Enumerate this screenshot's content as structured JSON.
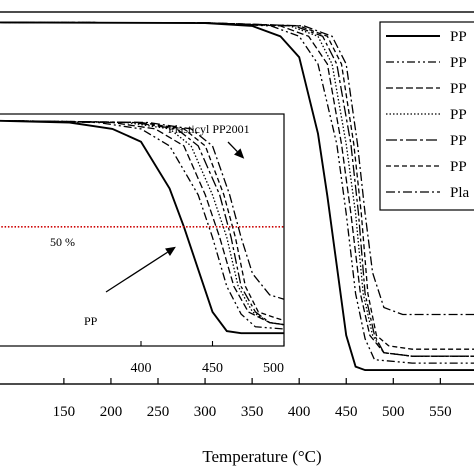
{
  "chart_data": {
    "type": "line",
    "xlabel": "Temperature (°C)",
    "ylabel": "",
    "xlim": [
      80,
      590
    ],
    "ylim": [
      -4,
      103
    ],
    "x_ticks": [
      150,
      200,
      250,
      300,
      350,
      400,
      450,
      500,
      550
    ],
    "x_tick_labels": [
      "150",
      "200",
      "250",
      "300",
      "350",
      "400",
      "450",
      "500",
      "550"
    ],
    "legend_position": "right",
    "legend_entries": [
      "PP",
      "PP",
      "PP",
      "PP",
      "PP",
      "PP",
      "Pla"
    ],
    "series": [
      {
        "name": "PP",
        "dash": "solid",
        "x": [
          80,
          300,
          350,
          380,
          400,
          420,
          430,
          440,
          450,
          460,
          470,
          520,
          590
        ],
        "y": [
          100,
          99.8,
          99,
          96,
          90,
          68,
          50,
          30,
          10,
          1,
          0,
          0,
          0
        ]
      },
      {
        "name": "PP",
        "dash": "dashdotdot",
        "x": [
          80,
          300,
          370,
          400,
          420,
          440,
          450,
          460,
          470,
          480,
          520,
          590
        ],
        "y": [
          100,
          99.9,
          99,
          96,
          88,
          65,
          45,
          22,
          9,
          3,
          2,
          2
        ]
      },
      {
        "name": "PP",
        "dash": "longdash",
        "x": [
          80,
          300,
          380,
          410,
          430,
          445,
          455,
          465,
          475,
          490,
          520,
          590
        ],
        "y": [
          100,
          99.9,
          99,
          96,
          88,
          65,
          45,
          22,
          10,
          5,
          4,
          4
        ]
      },
      {
        "name": "PP",
        "dash": "dotted",
        "x": [
          80,
          300,
          390,
          420,
          435,
          450,
          460,
          468,
          478,
          490,
          520,
          590
        ],
        "y": [
          100,
          99.9,
          99,
          96,
          88,
          65,
          45,
          22,
          10,
          5,
          4,
          4
        ]
      },
      {
        "name": "PP",
        "dash": "longdashdot",
        "x": [
          80,
          300,
          395,
          425,
          440,
          455,
          463,
          470,
          480,
          490,
          520,
          590
        ],
        "y": [
          100,
          99.9,
          99,
          96,
          88,
          65,
          45,
          22,
          10,
          5,
          4,
          4
        ]
      },
      {
        "name": "PP",
        "dash": "dashed",
        "x": [
          80,
          300,
          400,
          430,
          445,
          458,
          466,
          473,
          482,
          495,
          520,
          590
        ],
        "y": [
          100,
          99.9,
          99,
          96,
          88,
          65,
          45,
          22,
          10,
          7,
          6,
          6
        ]
      },
      {
        "name": "Pla",
        "dash": "dashdot",
        "x": [
          80,
          300,
          405,
          435,
          450,
          462,
          470,
          478,
          490,
          510,
          590
        ],
        "y": [
          100,
          99.9,
          99,
          96,
          88,
          65,
          45,
          28,
          18,
          16,
          16
        ]
      }
    ],
    "inset": {
      "xlim": [
        300,
        500
      ],
      "ylim": [
        -6,
        103
      ],
      "x_ticks": [
        400,
        450,
        500
      ],
      "x_tick_labels": [
        "400",
        "450",
        "500"
      ],
      "reference_line": {
        "y": 50,
        "label": "50 %",
        "color": "#cc0000",
        "style": "dotted"
      },
      "annotations": [
        {
          "text": "Plasticyl PP2001",
          "target_x": 468,
          "target_y": 82
        },
        {
          "text": "PP",
          "target_x": 430,
          "target_y": 50
        }
      ]
    }
  }
}
